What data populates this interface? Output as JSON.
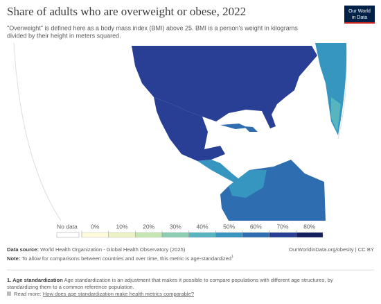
{
  "header": {
    "title": "Share of adults who are overweight or obese, 2022",
    "subtitle_lines": [
      "\"Overweight\" is defined here as a body mass index (BMI) above 25. BMI is a person's weight in kilograms",
      "divided by their height in meters squared."
    ],
    "logo_lines": [
      "Our World",
      "in Data"
    ]
  },
  "legend": {
    "no_data": "No data",
    "no_data_color": "#ffffff",
    "ticks": [
      {
        "value": 0,
        "label": "0%"
      },
      {
        "value": 10,
        "label": "10%"
      },
      {
        "value": 20,
        "label": "20%"
      },
      {
        "value": 30,
        "label": "30%"
      },
      {
        "value": 40,
        "label": "40%"
      },
      {
        "value": 50,
        "label": "50%"
      },
      {
        "value": 60,
        "label": "60%"
      },
      {
        "value": 70,
        "label": "70%"
      },
      {
        "value": 80,
        "label": "80%"
      }
    ],
    "colors": [
      "#fefbdc",
      "#eef3c5",
      "#c6e6b4",
      "#8fcdb3",
      "#57b5bf",
      "#3796c0",
      "#2d6db0",
      "#283f95",
      "#151f5f"
    ]
  },
  "footer": {
    "source_label": "Data source:",
    "source": "World Health Organization - Global Health Observatory (2025)",
    "url": "OurWorldinData.org/obesity | CC BY",
    "note_label": "Note:",
    "note": "To allow for comparisons between countries and over time, this metric is age-standardized",
    "note_ref": "1",
    "footnote_label": "1. Age standardization",
    "footnote_lines": [
      "Age standardization is an adjustment that makes it possible to compare populations with different age structures, by",
      "standardizing them to a common reference population."
    ],
    "read_more_label": "Read more:",
    "read_more_link": "How does age standardization make health metrics comparable?"
  }
}
